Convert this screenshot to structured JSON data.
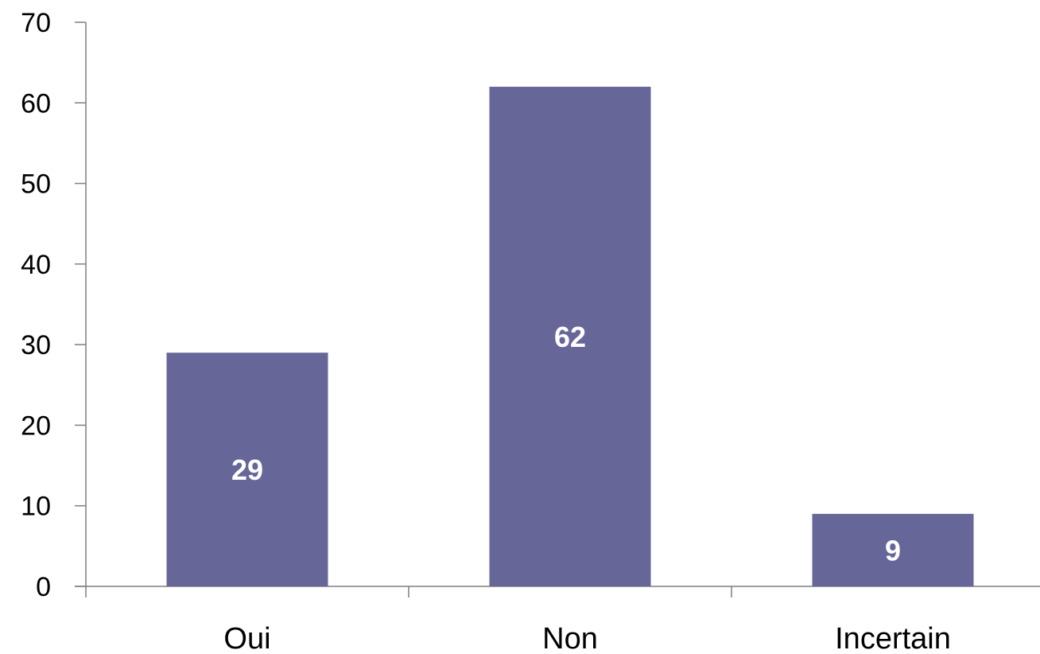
{
  "chart_data": {
    "type": "bar",
    "title": "",
    "xlabel": "",
    "ylabel": "",
    "categories": [
      "Oui",
      "Non",
      "Incertain"
    ],
    "values": [
      29,
      62,
      9
    ],
    "data_labels": [
      "29",
      "62",
      "9"
    ],
    "ylim": [
      0,
      70
    ],
    "yticks": [
      0,
      10,
      20,
      30,
      40,
      50,
      60,
      70
    ],
    "ytick_labels": [
      "0",
      "10",
      "20",
      "30",
      "40",
      "50",
      "60",
      "70"
    ],
    "grid": false,
    "legend": "none",
    "bar_color": "#666699",
    "label_color": "#ffffff"
  }
}
